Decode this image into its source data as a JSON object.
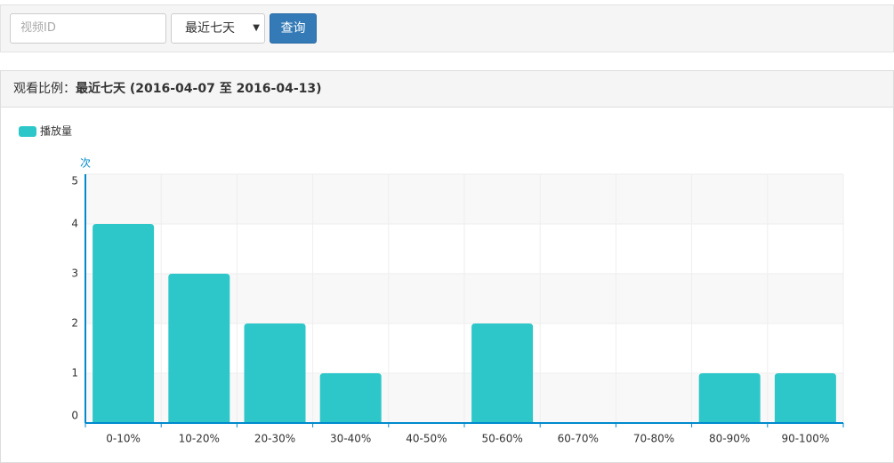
{
  "toolbar": {
    "placeholder": "视频ID",
    "period": "最近七天",
    "button": "查询"
  },
  "panel": {
    "label": "观看比例：",
    "range": "最近七天 (2016-04-07 至 2016-04-13)"
  },
  "chart_data": {
    "type": "bar",
    "y_label": "次",
    "categories": [
      "0-10%",
      "10-20%",
      "20-30%",
      "30-40%",
      "40-50%",
      "50-60%",
      "60-70%",
      "70-80%",
      "80-90%",
      "90-100%"
    ],
    "series": [
      {
        "name": "播放量",
        "color": "#2ec7c9",
        "values": [
          4,
          3,
          2,
          1,
          0,
          2,
          0,
          0,
          1,
          1
        ]
      }
    ],
    "ylim": [
      0,
      5
    ],
    "yticks": [
      0,
      1,
      2,
      3,
      4,
      5
    ],
    "grid": true
  }
}
